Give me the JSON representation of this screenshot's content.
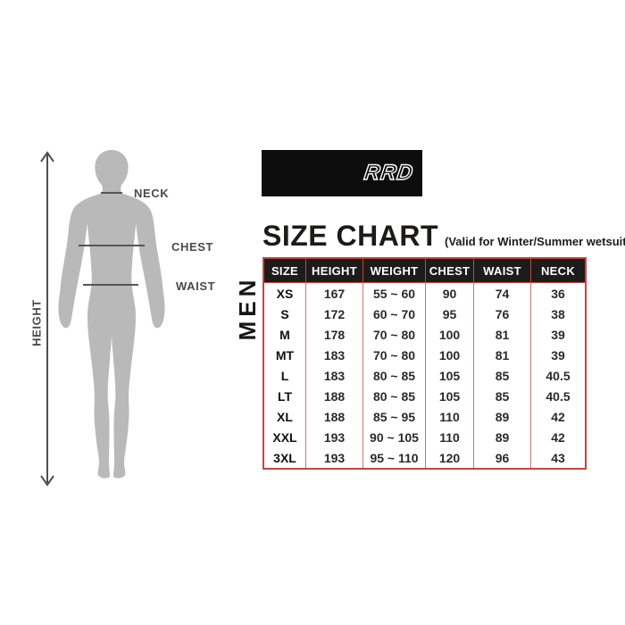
{
  "brand": {
    "logo_text": "RRD",
    "banner_bg": "#0d0d0d"
  },
  "figure": {
    "labels": {
      "neck": "NECK",
      "chest": "CHEST",
      "waist": "WAIST",
      "height": "HEIGHT"
    },
    "silhouette_color": "#b9b9b9",
    "line_color": "#565656"
  },
  "chart_data": {
    "type": "table",
    "title": "SIZE CHART",
    "subtitle": "(Valid for Winter/Summer wetsuits)",
    "group_label": "MEN",
    "columns": [
      "SIZE",
      "HEIGHT",
      "WEIGHT",
      "CHEST",
      "WAIST",
      "NECK"
    ],
    "rows": [
      [
        "XS",
        "167",
        "55 ~ 60",
        "90",
        "74",
        "36"
      ],
      [
        "S",
        "172",
        "60 ~ 70",
        "95",
        "76",
        "38"
      ],
      [
        "M",
        "178",
        "70 ~ 80",
        "100",
        "81",
        "39"
      ],
      [
        "MT",
        "183",
        "70 ~ 80",
        "100",
        "81",
        "39"
      ],
      [
        "L",
        "183",
        "80 ~ 85",
        "105",
        "85",
        "40.5"
      ],
      [
        "LT",
        "188",
        "80 ~ 85",
        "105",
        "85",
        "40.5"
      ],
      [
        "XL",
        "188",
        "85 ~ 95",
        "110",
        "89",
        "42"
      ],
      [
        "XXL",
        "193",
        "90 ~ 105",
        "110",
        "89",
        "42"
      ],
      [
        "3XL",
        "193",
        "95 ~ 110",
        "120",
        "96",
        "43"
      ]
    ],
    "colors": {
      "border": "#c2473f",
      "header_bg": "#1e1b1b",
      "header_text": "#ffffff"
    }
  }
}
